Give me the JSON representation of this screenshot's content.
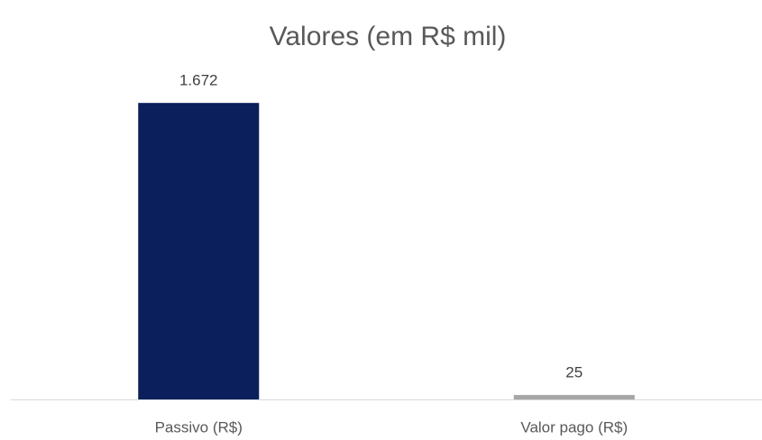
{
  "chart_data": {
    "type": "bar",
    "title": "Valores (em R$ mil)",
    "categories": [
      "Passivo (R$)",
      "Valor pago (R$)"
    ],
    "values": [
      1672,
      25
    ],
    "value_labels": [
      "1.672",
      "25"
    ],
    "colors": [
      "#0a1f5c",
      "#a6a6a6"
    ],
    "ylim": [
      0,
      1800
    ]
  }
}
